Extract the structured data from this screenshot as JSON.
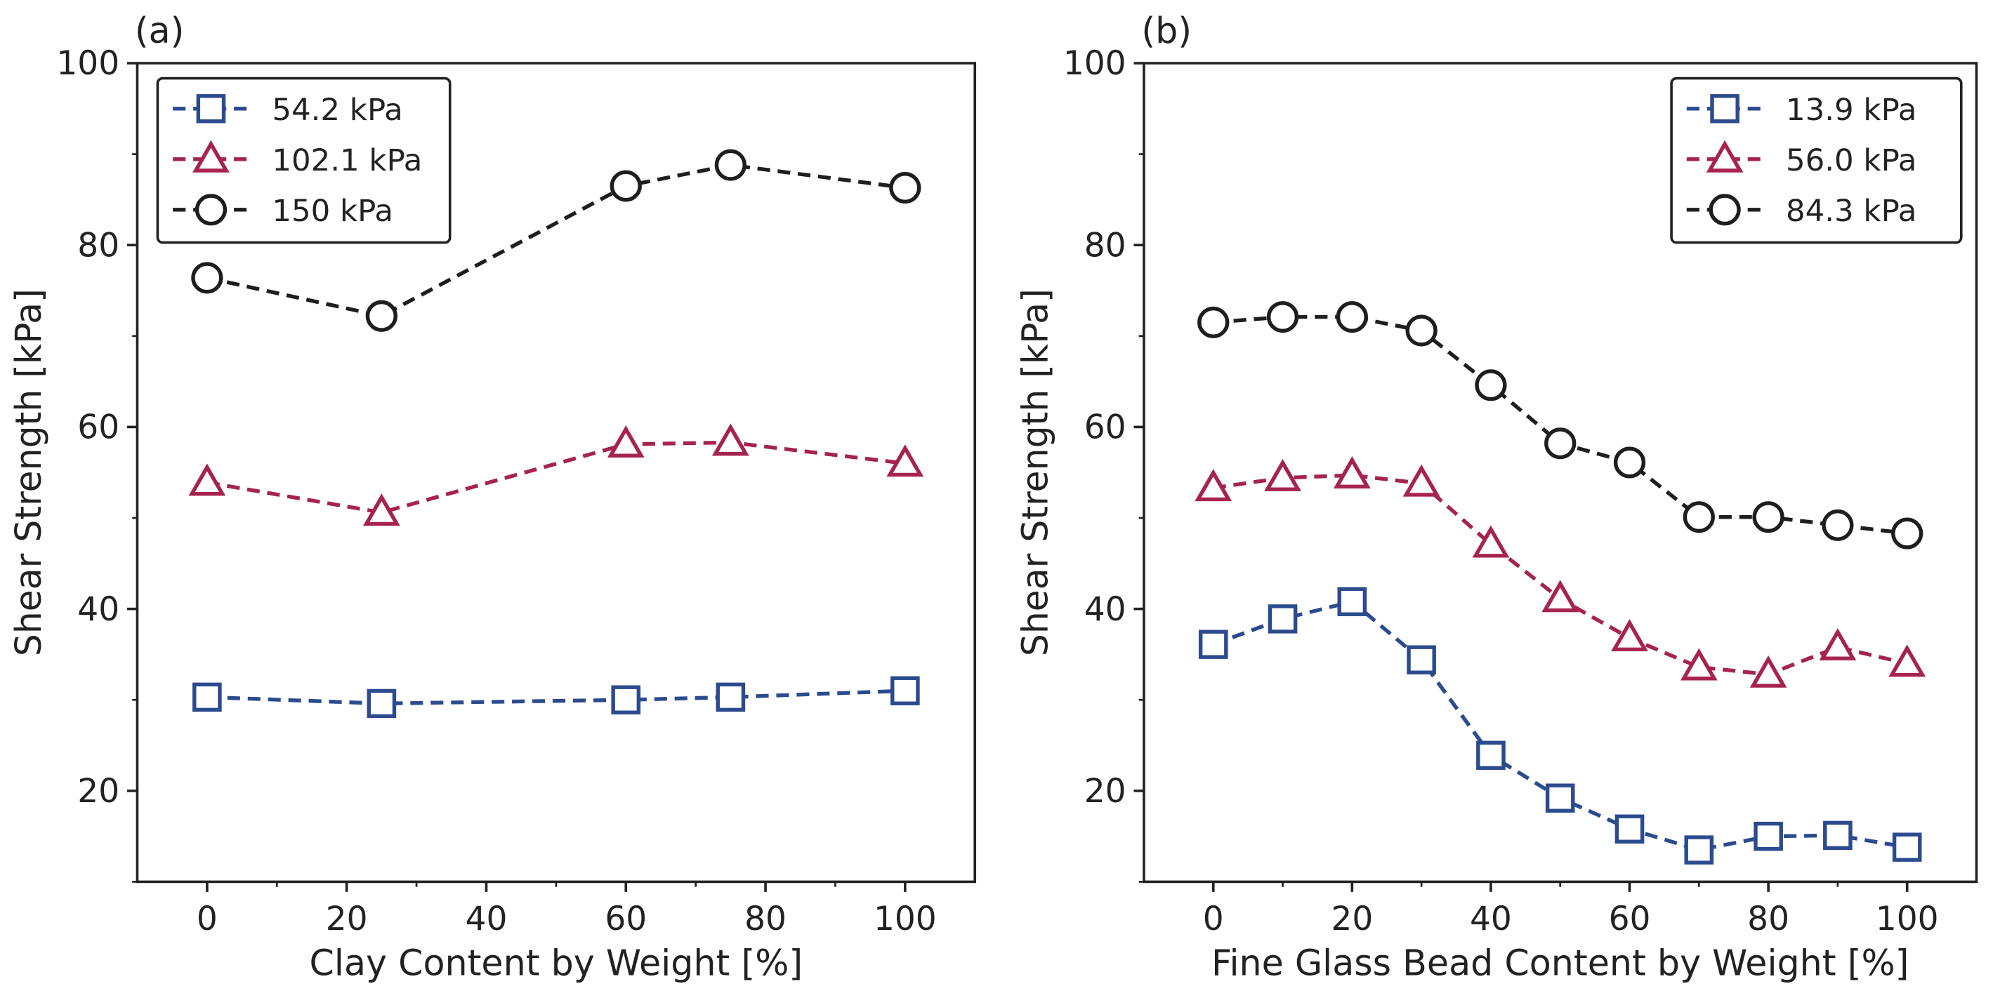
{
  "chart_data": [
    {
      "type": "line",
      "title": "(a)",
      "xlabel": "Clay Content by Weight [%]",
      "ylabel": "Shear Strength [kPa]",
      "x": [
        0,
        25,
        60,
        75,
        100
      ],
      "series": [
        {
          "name": "54.2 kPa",
          "color": "#2b4b8e",
          "marker": "square",
          "values": [
            30.3,
            29.6,
            30.0,
            30.3,
            31.0
          ]
        },
        {
          "name": "102.1 kPa",
          "color": "#a6234f",
          "marker": "triangle",
          "values": [
            53.9,
            50.6,
            58.1,
            58.3,
            56.0
          ]
        },
        {
          "name": "150 kPa",
          "color": "#1e1e1e",
          "marker": "circle",
          "values": [
            76.4,
            72.2,
            86.5,
            88.8,
            86.3
          ]
        }
      ],
      "xlim": [
        -10,
        110
      ],
      "xticks": [
        0,
        20,
        40,
        60,
        80,
        100
      ],
      "xminor": [
        10,
        30,
        50,
        70,
        90
      ],
      "ylim": [
        10,
        100
      ],
      "yticks": [
        20,
        40,
        60,
        80,
        100
      ],
      "yminor": [
        10,
        30,
        50,
        70,
        90
      ],
      "legend": "upper left"
    },
    {
      "type": "line",
      "title": "(b)",
      "xlabel": "Fine Glass Bead Content by Weight [%]",
      "ylabel": "Shear Strength [kPa]",
      "x": [
        0,
        10,
        20,
        30,
        40,
        50,
        60,
        70,
        80,
        90,
        100
      ],
      "series": [
        {
          "name": "13.9 kPa",
          "color": "#2b4b8e",
          "marker": "square",
          "values": [
            36.1,
            38.9,
            40.8,
            34.4,
            23.9,
            19.2,
            15.8,
            13.5,
            15.0,
            15.1,
            13.8
          ]
        },
        {
          "name": "56.0 kPa",
          "color": "#a6234f",
          "marker": "triangle",
          "values": [
            53.3,
            54.4,
            54.7,
            53.8,
            47.1,
            41.1,
            36.8,
            33.6,
            32.8,
            35.8,
            34.0
          ]
        },
        {
          "name": "84.3 kPa",
          "color": "#1e1e1e",
          "marker": "circle",
          "values": [
            71.5,
            72.1,
            72.1,
            70.6,
            64.6,
            58.2,
            56.1,
            50.1,
            50.1,
            49.2,
            48.3
          ]
        }
      ],
      "xlim": [
        -10,
        110
      ],
      "xticks": [
        0,
        20,
        40,
        60,
        80,
        100
      ],
      "xminor": [
        10,
        30,
        50,
        70,
        90
      ],
      "ylim": [
        10,
        100
      ],
      "yticks": [
        20,
        40,
        60,
        80,
        100
      ],
      "yminor": [
        10,
        30,
        50,
        70,
        90
      ],
      "legend": "upper right"
    }
  ]
}
